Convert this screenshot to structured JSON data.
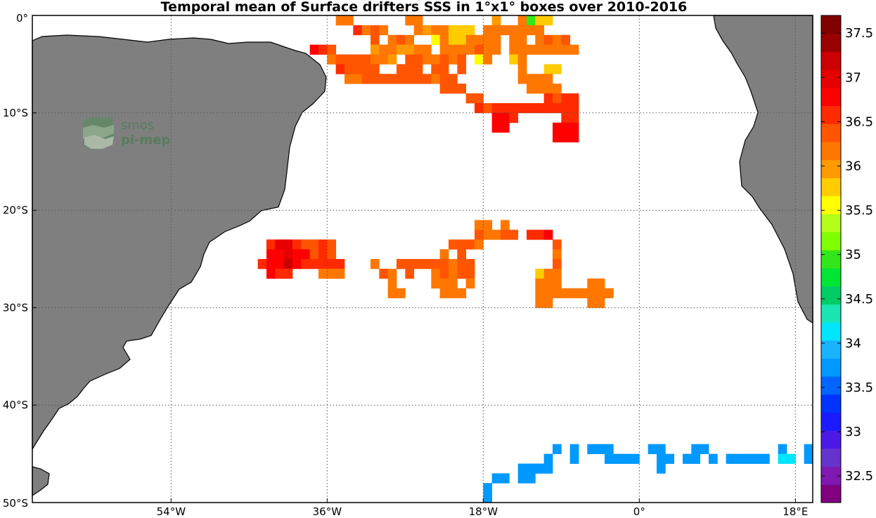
{
  "title": "Temporal mean of Surface drifters SSS in 1°x1° boxes over 2010-2016",
  "logo": {
    "line1": "smos",
    "line2": "pi-mep"
  },
  "map": {
    "lon_range": [
      -70,
      20
    ],
    "lat_range": [
      -50,
      0
    ],
    "x_ticks": [
      {
        "lon": -54,
        "label": "54°W"
      },
      {
        "lon": -36,
        "label": "36°W"
      },
      {
        "lon": -18,
        "label": "18°W"
      },
      {
        "lon": 0,
        "label": "0°"
      },
      {
        "lon": 18,
        "label": "18°E"
      }
    ],
    "y_ticks": [
      {
        "lat": 0,
        "label": "0°"
      },
      {
        "lat": -10,
        "label": "10°S"
      },
      {
        "lat": -20,
        "label": "20°S"
      },
      {
        "lat": -30,
        "label": "30°S"
      },
      {
        "lat": -40,
        "label": "40°S"
      },
      {
        "lat": -50,
        "label": "50°S"
      }
    ],
    "gridlines": "dotted",
    "land_color": "#7f7f7f",
    "ocean_color": "#ffffff",
    "cells": [
      [
        -34.5,
        -0.5,
        36.1
      ],
      [
        -33.5,
        -0.5,
        36.1
      ],
      [
        -26.5,
        -0.5,
        36.1
      ],
      [
        -25.5,
        -0.5,
        36.1
      ],
      [
        -16.5,
        -0.5,
        36.0
      ],
      [
        -13.5,
        -0.5,
        36.1
      ],
      [
        -12.5,
        -0.5,
        35.0
      ],
      [
        -11.5,
        -0.5,
        35.8
      ],
      [
        -10.5,
        -0.5,
        35.8
      ],
      [
        -32.5,
        -1.5,
        36.5
      ],
      [
        -31.5,
        -1.5,
        36.1
      ],
      [
        -30.5,
        -1.5,
        36.3
      ],
      [
        -29.5,
        -1.5,
        36.1
      ],
      [
        -25.5,
        -1.5,
        36.1
      ],
      [
        -24.5,
        -1.5,
        36.0
      ],
      [
        -23.5,
        -1.5,
        36.1
      ],
      [
        -22.5,
        -1.5,
        36.1
      ],
      [
        -21.5,
        -1.5,
        35.8
      ],
      [
        -20.5,
        -1.5,
        35.8
      ],
      [
        -19.5,
        -1.5,
        35.8
      ],
      [
        -17.5,
        -1.5,
        36.1
      ],
      [
        -16.5,
        -1.5,
        36.1
      ],
      [
        -15.5,
        -1.5,
        36.1
      ],
      [
        -14.5,
        -1.5,
        36.1
      ],
      [
        -13.5,
        -1.5,
        36.1
      ],
      [
        -12.5,
        -1.5,
        36.2
      ],
      [
        -11.5,
        -1.5,
        36.1
      ],
      [
        -30.5,
        -2.5,
        36.3
      ],
      [
        -28.5,
        -2.5,
        36.2
      ],
      [
        -27.5,
        -2.5,
        36.3
      ],
      [
        -26.5,
        -2.5,
        36.2
      ],
      [
        -23.5,
        -2.5,
        35.6
      ],
      [
        -22.5,
        -2.5,
        36.2
      ],
      [
        -21.5,
        -2.5,
        35.8
      ],
      [
        -20.5,
        -2.5,
        35.8
      ],
      [
        -19.5,
        -2.5,
        36.1
      ],
      [
        -18.5,
        -2.5,
        36.1
      ],
      [
        -17.5,
        -2.5,
        36.2
      ],
      [
        -16.5,
        -2.5,
        36.2
      ],
      [
        -14.5,
        -2.5,
        36.2
      ],
      [
        -13.5,
        -2.5,
        36.2
      ],
      [
        -11.5,
        -2.5,
        36.1
      ],
      [
        -10.5,
        -2.5,
        36.3
      ],
      [
        -9.5,
        -2.5,
        36.1
      ],
      [
        -8.5,
        -2.5,
        36.3
      ],
      [
        -30.5,
        -3.5,
        36.0
      ],
      [
        -29.5,
        -3.5,
        36.1
      ],
      [
        -28.5,
        -3.5,
        36.2
      ],
      [
        -27.5,
        -3.5,
        36.0
      ],
      [
        -26.5,
        -3.5,
        36.0
      ],
      [
        -25.5,
        -3.5,
        36.1
      ],
      [
        -24.5,
        -3.5,
        36.1
      ],
      [
        -22.5,
        -3.5,
        36.2
      ],
      [
        -21.5,
        -3.5,
        36.2
      ],
      [
        -20.5,
        -3.5,
        36.1
      ],
      [
        -19.5,
        -3.5,
        36.2
      ],
      [
        -18.5,
        -3.5,
        36.3
      ],
      [
        -17.5,
        -3.5,
        36.2
      ],
      [
        -16.5,
        -3.5,
        36.1
      ],
      [
        -14.5,
        -3.5,
        36.1
      ],
      [
        -13.5,
        -3.5,
        36.2
      ],
      [
        -12.5,
        -3.5,
        36.1
      ],
      [
        -11.5,
        -3.5,
        36.1
      ],
      [
        -10.5,
        -3.5,
        36.1
      ],
      [
        -9.5,
        -3.5,
        36.1
      ],
      [
        -8.5,
        -3.5,
        36.1
      ],
      [
        -7.5,
        -3.5,
        36.1
      ],
      [
        -37.5,
        -3.5,
        36.8
      ],
      [
        -36.5,
        -3.5,
        36.5
      ],
      [
        -35.5,
        -3.5,
        36.4
      ],
      [
        -35.5,
        -4.5,
        36.2
      ],
      [
        -34.5,
        -4.5,
        36.3
      ],
      [
        -33.5,
        -4.5,
        36.4
      ],
      [
        -32.5,
        -4.5,
        36.4
      ],
      [
        -31.5,
        -4.5,
        36.3
      ],
      [
        -30.5,
        -4.5,
        36.2
      ],
      [
        -29.5,
        -4.5,
        36.2
      ],
      [
        -28.5,
        -4.5,
        36.0
      ],
      [
        -26.5,
        -4.5,
        36.3
      ],
      [
        -25.5,
        -4.5,
        36.3
      ],
      [
        -24.5,
        -4.5,
        36.2
      ],
      [
        -23.5,
        -4.5,
        36.2
      ],
      [
        -22.5,
        -4.5,
        36.3
      ],
      [
        -21.5,
        -4.5,
        36.2
      ],
      [
        -20.5,
        -4.5,
        36.3
      ],
      [
        -18.5,
        -4.5,
        35.6
      ],
      [
        -17.5,
        -4.5,
        36.2
      ],
      [
        -14.5,
        -4.5,
        35.7
      ],
      [
        -13.5,
        -4.5,
        36.2
      ],
      [
        -34.5,
        -5.5,
        36.6
      ],
      [
        -33.5,
        -5.5,
        36.4
      ],
      [
        -32.5,
        -5.5,
        36.3
      ],
      [
        -31.5,
        -5.5,
        36.4
      ],
      [
        -30.5,
        -5.5,
        36.3
      ],
      [
        -27.5,
        -5.5,
        36.4
      ],
      [
        -26.5,
        -5.5,
        36.3
      ],
      [
        -25.5,
        -5.5,
        36.3
      ],
      [
        -23.5,
        -5.5,
        36.4
      ],
      [
        -22.5,
        -5.5,
        36.3
      ],
      [
        -20.5,
        -5.5,
        36.3
      ],
      [
        -13.5,
        -5.5,
        36.1
      ],
      [
        -10.5,
        -5.5,
        35.7
      ],
      [
        -9.5,
        -5.5,
        35.7
      ],
      [
        -33.5,
        -6.5,
        36.1
      ],
      [
        -32.5,
        -6.5,
        36.1
      ],
      [
        -31.5,
        -6.5,
        36.3
      ],
      [
        -30.5,
        -6.5,
        36.4
      ],
      [
        -29.5,
        -6.5,
        36.3
      ],
      [
        -28.5,
        -6.5,
        36.3
      ],
      [
        -27.5,
        -6.5,
        36.3
      ],
      [
        -26.5,
        -6.5,
        36.3
      ],
      [
        -25.5,
        -6.5,
        36.4
      ],
      [
        -24.5,
        -6.5,
        36.3
      ],
      [
        -23.5,
        -6.5,
        36.2
      ],
      [
        -22.5,
        -6.5,
        36.3
      ],
      [
        -21.5,
        -6.5,
        36.3
      ],
      [
        -13.5,
        -6.5,
        36.2
      ],
      [
        -12.5,
        -6.5,
        36.1
      ],
      [
        -11.5,
        -6.5,
        36.1
      ],
      [
        -10.5,
        -6.5,
        36.2
      ],
      [
        -22.5,
        -7.5,
        36.4
      ],
      [
        -21.5,
        -7.5,
        36.3
      ],
      [
        -20.5,
        -7.5,
        36.3
      ],
      [
        -12.5,
        -7.5,
        36.2
      ],
      [
        -11.5,
        -7.5,
        36.2
      ],
      [
        -10.5,
        -7.5,
        36.2
      ],
      [
        -9.5,
        -7.5,
        36.1
      ],
      [
        -19.5,
        -8.5,
        36.4
      ],
      [
        -18.5,
        -8.5,
        36.4
      ],
      [
        -10.5,
        -8.5,
        36.5
      ],
      [
        -9.5,
        -8.5,
        36.4
      ],
      [
        -8.5,
        -8.5,
        36.6
      ],
      [
        -7.5,
        -8.5,
        36.6
      ],
      [
        -18.5,
        -9.5,
        36.5
      ],
      [
        -17.5,
        -9.5,
        36.3
      ],
      [
        -16.5,
        -9.5,
        36.5
      ],
      [
        -15.5,
        -9.5,
        36.5
      ],
      [
        -14.5,
        -9.5,
        36.6
      ],
      [
        -13.5,
        -9.5,
        36.6
      ],
      [
        -12.5,
        -9.5,
        36.5
      ],
      [
        -11.5,
        -9.5,
        36.6
      ],
      [
        -10.5,
        -9.5,
        36.6
      ],
      [
        -9.5,
        -9.5,
        36.5
      ],
      [
        -8.5,
        -9.5,
        36.6
      ],
      [
        -7.5,
        -9.5,
        36.6
      ],
      [
        -16.5,
        -10.5,
        36.7
      ],
      [
        -15.5,
        -10.5,
        36.8
      ],
      [
        -14.5,
        -10.5,
        36.6
      ],
      [
        -8.5,
        -10.5,
        36.6
      ],
      [
        -7.5,
        -10.5,
        36.6
      ],
      [
        -16.5,
        -11.5,
        36.7
      ],
      [
        -15.5,
        -11.5,
        36.7
      ],
      [
        -9.5,
        -11.5,
        36.7
      ],
      [
        -8.5,
        -11.5,
        36.7
      ],
      [
        -7.5,
        -11.5,
        36.7
      ],
      [
        -9.5,
        -12.5,
        36.7
      ],
      [
        -8.5,
        -12.5,
        36.8
      ],
      [
        -7.5,
        -12.5,
        36.7
      ],
      [
        -18.5,
        -21.5,
        36.1
      ],
      [
        -17.5,
        -21.5,
        36.1
      ],
      [
        -15.5,
        -21.5,
        36.1
      ],
      [
        -18.5,
        -22.5,
        36.3
      ],
      [
        -17.5,
        -22.5,
        36.2
      ],
      [
        -16.5,
        -22.5,
        36.2
      ],
      [
        -15.5,
        -22.5,
        36.3
      ],
      [
        -14.5,
        -22.5,
        36.3
      ],
      [
        -12.5,
        -22.5,
        36.6
      ],
      [
        -11.5,
        -22.5,
        36.6
      ],
      [
        -10.5,
        -22.5,
        36.7
      ],
      [
        -21.5,
        -23.5,
        36.3
      ],
      [
        -20.5,
        -23.5,
        36.3
      ],
      [
        -19.5,
        -23.5,
        36.3
      ],
      [
        -18.5,
        -23.5,
        36.2
      ],
      [
        -9.5,
        -23.5,
        36.3
      ],
      [
        -42.5,
        -23.5,
        36.6
      ],
      [
        -41.5,
        -23.5,
        36.9
      ],
      [
        -40.5,
        -23.5,
        36.9
      ],
      [
        -39.5,
        -23.5,
        36.6
      ],
      [
        -38.5,
        -23.5,
        36.4
      ],
      [
        -37.5,
        -23.5,
        36.3
      ],
      [
        -36.5,
        -23.5,
        36.6
      ],
      [
        -35.5,
        -23.5,
        36.3
      ],
      [
        -22.5,
        -24.5,
        36.2
      ],
      [
        -20.5,
        -24.5,
        36.3
      ],
      [
        -9.5,
        -24.5,
        36.2
      ],
      [
        -42.5,
        -24.5,
        36.7
      ],
      [
        -41.5,
        -24.5,
        36.8
      ],
      [
        -40.5,
        -24.5,
        36.9
      ],
      [
        -39.5,
        -24.5,
        36.7
      ],
      [
        -38.5,
        -24.5,
        36.7
      ],
      [
        -37.5,
        -24.5,
        36.3
      ],
      [
        -36.5,
        -24.5,
        36.6
      ],
      [
        -35.5,
        -24.5,
        36.4
      ],
      [
        -43.5,
        -25.5,
        36.6
      ],
      [
        -42.5,
        -25.5,
        36.7
      ],
      [
        -41.5,
        -25.5,
        36.8
      ],
      [
        -40.5,
        -25.5,
        37.2
      ],
      [
        -39.5,
        -25.5,
        36.8
      ],
      [
        -38.5,
        -25.5,
        36.6
      ],
      [
        -37.5,
        -25.5,
        36.5
      ],
      [
        -36.5,
        -25.5,
        36.6
      ],
      [
        -35.5,
        -25.5,
        36.5
      ],
      [
        -34.5,
        -25.5,
        36.5
      ],
      [
        -30.5,
        -25.5,
        36.1
      ],
      [
        -27.5,
        -25.5,
        36.3
      ],
      [
        -26.5,
        -25.5,
        36.3
      ],
      [
        -25.5,
        -25.5,
        36.3
      ],
      [
        -24.5,
        -25.5,
        36.3
      ],
      [
        -23.5,
        -25.5,
        36.3
      ],
      [
        -22.5,
        -25.5,
        36.3
      ],
      [
        -21.5,
        -25.5,
        36.2
      ],
      [
        -20.5,
        -25.5,
        36.3
      ],
      [
        -19.5,
        -25.5,
        36.3
      ],
      [
        -9.5,
        -25.5,
        36.3
      ],
      [
        -42.5,
        -26.5,
        36.7
      ],
      [
        -41.5,
        -26.5,
        36.6
      ],
      [
        -40.5,
        -26.5,
        36.6
      ],
      [
        -36.5,
        -26.5,
        36.1
      ],
      [
        -35.5,
        -26.5,
        36.1
      ],
      [
        -34.5,
        -26.5,
        36.2
      ],
      [
        -29.5,
        -26.5,
        36.3
      ],
      [
        -28.5,
        -26.5,
        36.1
      ],
      [
        -26.5,
        -26.5,
        36.3
      ],
      [
        -23.5,
        -26.5,
        36.1
      ],
      [
        -22.5,
        -26.5,
        36.3
      ],
      [
        -21.5,
        -26.5,
        36.2
      ],
      [
        -20.5,
        -26.5,
        36.3
      ],
      [
        -19.5,
        -26.5,
        36.3
      ],
      [
        -11.5,
        -26.5,
        35.8
      ],
      [
        -10.5,
        -26.5,
        36.2
      ],
      [
        -9.5,
        -26.5,
        36.1
      ],
      [
        -28.5,
        -27.5,
        36.1
      ],
      [
        -23.5,
        -27.5,
        36.2
      ],
      [
        -22.5,
        -27.5,
        36.1
      ],
      [
        -21.5,
        -27.5,
        36.2
      ],
      [
        -19.5,
        -27.5,
        36.2
      ],
      [
        -11.5,
        -27.5,
        36.1
      ],
      [
        -10.5,
        -27.5,
        36.1
      ],
      [
        -9.5,
        -27.5,
        36.1
      ],
      [
        -5.5,
        -27.5,
        36.1
      ],
      [
        -4.5,
        -27.5,
        36.1
      ],
      [
        -28.5,
        -28.5,
        36.1
      ],
      [
        -27.5,
        -28.5,
        36.1
      ],
      [
        -22.5,
        -28.5,
        36.1
      ],
      [
        -21.5,
        -28.5,
        36.1
      ],
      [
        -20.5,
        -28.5,
        36.1
      ],
      [
        -11.5,
        -28.5,
        36.1
      ],
      [
        -10.5,
        -28.5,
        36.1
      ],
      [
        -9.5,
        -28.5,
        36.1
      ],
      [
        -8.5,
        -28.5,
        36.1
      ],
      [
        -7.5,
        -28.5,
        36.1
      ],
      [
        -6.5,
        -28.5,
        36.1
      ],
      [
        -5.5,
        -28.5,
        36.1
      ],
      [
        -4.5,
        -28.5,
        36.1
      ],
      [
        -3.5,
        -28.5,
        36.1
      ],
      [
        -11.5,
        -29.5,
        36.1
      ],
      [
        -10.5,
        -29.5,
        36.1
      ],
      [
        -5.5,
        -29.5,
        36.1
      ],
      [
        -4.5,
        -29.5,
        36.1
      ],
      [
        -9.5,
        -44.5,
        33.8
      ],
      [
        -7.5,
        -44.5,
        33.8
      ],
      [
        -5.5,
        -44.5,
        33.8
      ],
      [
        -4.5,
        -44.5,
        33.8
      ],
      [
        -3.5,
        -44.5,
        33.8
      ],
      [
        1.5,
        -44.5,
        33.8
      ],
      [
        2.5,
        -44.5,
        33.8
      ],
      [
        6.5,
        -44.5,
        33.8
      ],
      [
        7.5,
        -44.5,
        33.8
      ],
      [
        16.5,
        -44.5,
        33.8
      ],
      [
        19.5,
        -44.5,
        33.8
      ],
      [
        -10.5,
        -45.5,
        33.8
      ],
      [
        -7.5,
        -45.5,
        33.8
      ],
      [
        -3.5,
        -45.5,
        33.8
      ],
      [
        -2.5,
        -45.5,
        33.8
      ],
      [
        -1.5,
        -45.5,
        33.8
      ],
      [
        -0.5,
        -45.5,
        33.8
      ],
      [
        2.5,
        -45.5,
        33.8
      ],
      [
        3.5,
        -45.5,
        33.8
      ],
      [
        5.5,
        -45.5,
        33.8
      ],
      [
        6.5,
        -45.5,
        33.8
      ],
      [
        8.5,
        -45.5,
        33.8
      ],
      [
        10.5,
        -45.5,
        33.8
      ],
      [
        11.5,
        -45.5,
        33.8
      ],
      [
        12.5,
        -45.5,
        33.8
      ],
      [
        13.5,
        -45.5,
        33.8
      ],
      [
        14.5,
        -45.5,
        33.8
      ],
      [
        16.5,
        -45.5,
        34.2
      ],
      [
        17.5,
        -45.5,
        34.2
      ],
      [
        19.5,
        -45.5,
        33.8
      ],
      [
        -13.5,
        -46.5,
        33.8
      ],
      [
        -12.5,
        -46.5,
        33.8
      ],
      [
        -11.5,
        -46.5,
        33.8
      ],
      [
        -10.5,
        -46.5,
        33.8
      ],
      [
        2.5,
        -46.5,
        33.8
      ],
      [
        -16.5,
        -47.5,
        33.8
      ],
      [
        -15.5,
        -47.5,
        33.8
      ],
      [
        -13.5,
        -47.5,
        33.8
      ],
      [
        -12.5,
        -47.5,
        33.8
      ],
      [
        -17.5,
        -48.5,
        33.8
      ],
      [
        -17.5,
        -49.5,
        33.8
      ]
    ]
  },
  "colorbar": {
    "min": 32.2,
    "max": 37.7,
    "colors": [
      "#800080",
      "#7f19b2",
      "#6633cc",
      "#4c1ae6",
      "#1a1aff",
      "#0033ff",
      "#0066ff",
      "#0099ff",
      "#1ab3ff",
      "#00e6ff",
      "#1ae6b3",
      "#00cc66",
      "#00e633",
      "#33e61a",
      "#80ff00",
      "#b3ff1a",
      "#ffff00",
      "#ffcc00",
      "#ff9900",
      "#ff7700",
      "#ff5500",
      "#ff2a00",
      "#ff0000",
      "#e60000",
      "#cc0000",
      "#990000",
      "#800000"
    ],
    "tick_labels": [
      "32.5",
      "33",
      "33.5",
      "34",
      "34.5",
      "35",
      "35.5",
      "36",
      "36.5",
      "37",
      "37.5"
    ]
  }
}
